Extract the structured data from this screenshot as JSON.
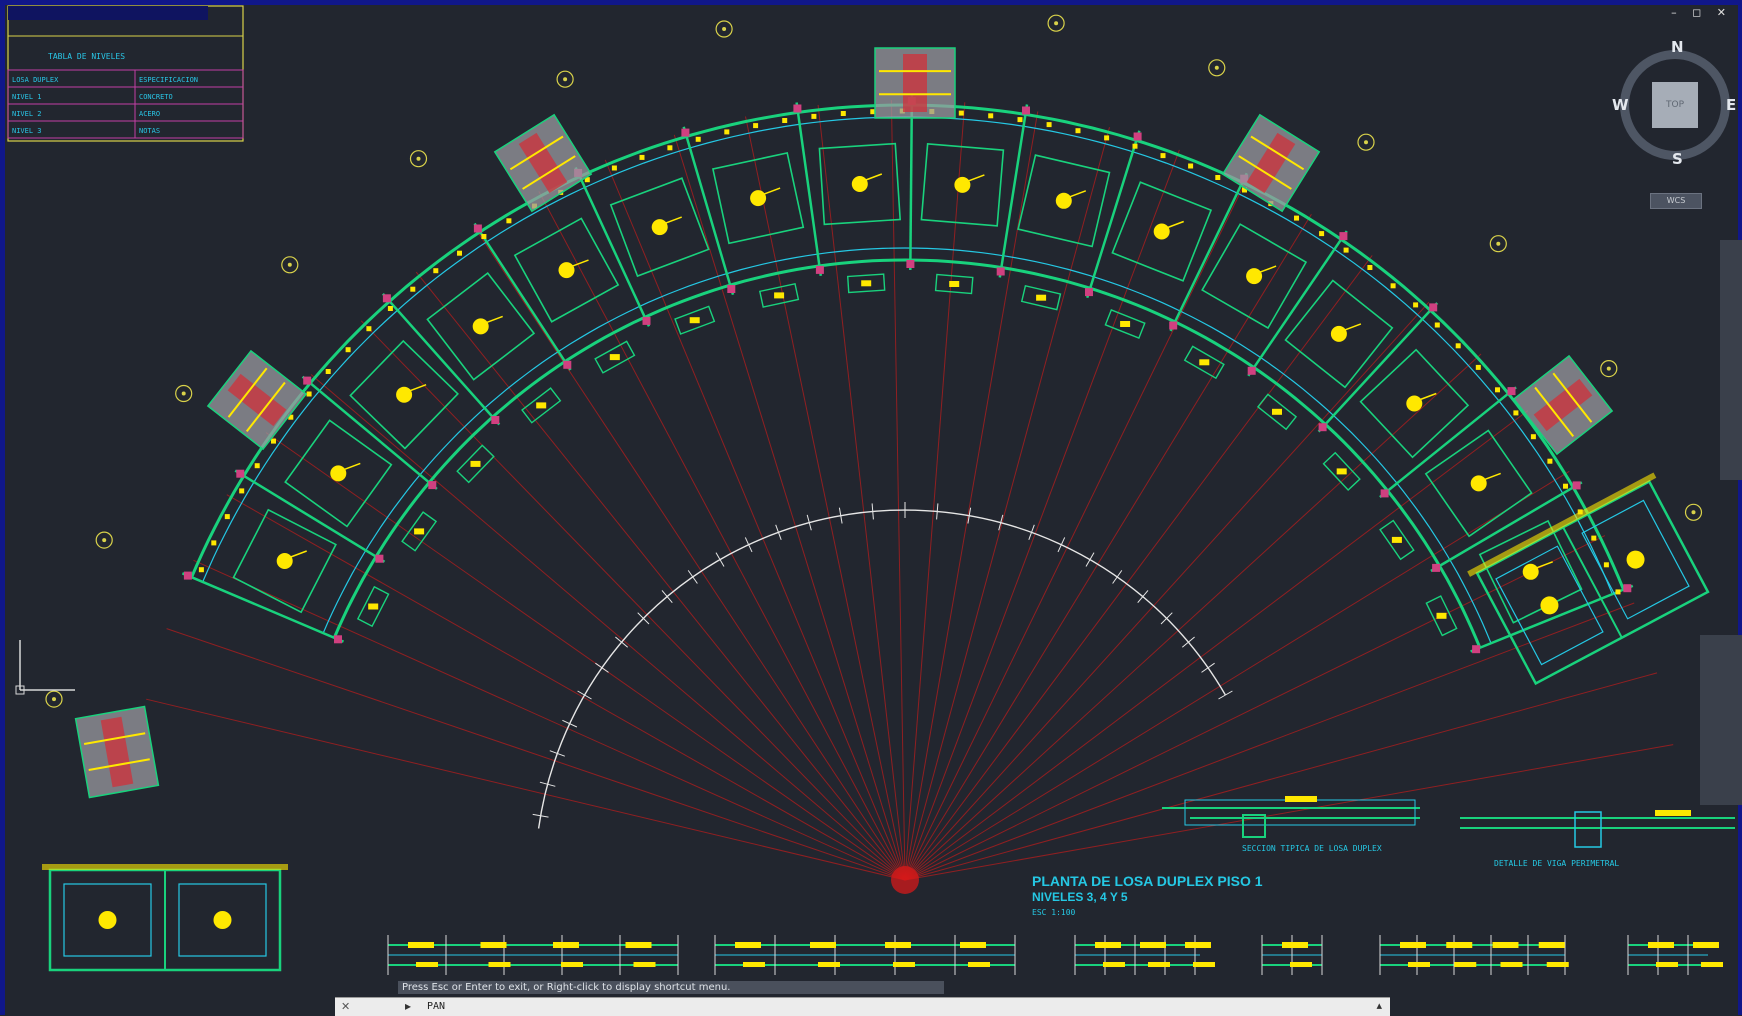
{
  "window": {
    "controls": "– ◻ ✕"
  },
  "drawing": {
    "title_line1": "PLANTA DE LOSA DUPLEX PISO 1",
    "title_line2": "NIVELES 3, 4 Y 5",
    "scale_note": "ESC 1:100",
    "section_label_1": "SECCION TIPICA DE LOSA DUPLEX",
    "section_label_2": "DETALLE DE VIGA PERIMETRAL"
  },
  "title_block": {
    "header": "TABLA DE NIVELES",
    "rows_left": [
      "LOSA DUPLEX",
      "NIVEL 1",
      "NIVEL 2",
      "NIVEL 3"
    ],
    "rows_right": [
      "ESPECIFICACION",
      "CONCRETO",
      "ACERO",
      "NOTAS"
    ]
  },
  "viewcube": {
    "north": "N",
    "south": "S",
    "east": "E",
    "west": "W",
    "face": "TOP",
    "wcs": "WCS"
  },
  "command": {
    "hint": "Press Esc or Enter to exit, or Right-click to display shortcut menu.",
    "prompt": "PAN",
    "close_glyph": "✕",
    "icon_glyph": "▸",
    "arrow_glyph": "▴"
  },
  "colors": {
    "background": "#22262f",
    "frame": "#10178a",
    "beam": "#19d27d",
    "dimension": "#25c8e4",
    "rebar": "#ffe800",
    "grid_line": "#b51d1d",
    "column": "#d04080"
  }
}
